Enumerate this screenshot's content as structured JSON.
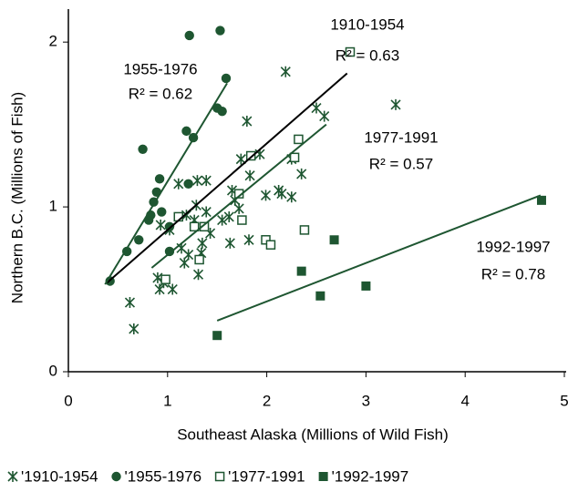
{
  "chart_data": {
    "type": "scatter",
    "x_label": "Southeast Alaska (Millions of Wild Fish)",
    "y_label": "Northern B.C. (Millions of Fish)",
    "xlim": [
      0,
      5
    ],
    "xticks": [
      0,
      1,
      2,
      3,
      4,
      5
    ],
    "ylim": [
      0,
      2.2
    ],
    "yticks": [
      0,
      1,
      2
    ],
    "grid": false,
    "legend": "bottom",
    "series": [
      {
        "name": "'1910-1954",
        "marker": "asterisk",
        "color": "#1e5631",
        "line_color": "#000000",
        "label": "1910-1954",
        "r2_label": "R² = 0.63",
        "x": [
          0.62,
          0.66,
          0.9,
          0.92,
          0.93,
          0.96,
          1.05,
          1.02,
          1.11,
          1.14,
          1.17,
          1.19,
          1.21,
          1.27,
          1.29,
          1.3,
          1.31,
          1.34,
          1.35,
          1.39,
          1.39,
          1.43,
          1.55,
          1.62,
          1.65,
          1.68,
          1.72,
          1.74,
          1.8,
          1.82,
          1.83,
          1.93,
          1.99,
          2.12,
          2.15,
          2.19,
          2.25,
          2.35,
          2.5,
          2.58,
          3.3,
          1.63,
          2.25
        ],
        "values": [
          0.42,
          0.26,
          0.57,
          0.5,
          0.89,
          0.54,
          0.5,
          0.86,
          1.14,
          0.75,
          0.66,
          0.95,
          0.71,
          0.92,
          1.01,
          1.16,
          0.59,
          0.72,
          0.78,
          1.16,
          0.97,
          0.84,
          0.92,
          0.94,
          1.1,
          1.04,
          0.99,
          1.29,
          1.52,
          0.8,
          1.19,
          1.32,
          1.07,
          1.1,
          1.08,
          1.82,
          1.06,
          1.2,
          1.6,
          1.55,
          1.62,
          0.78,
          1.29
        ],
        "trend": {
          "x": [
            0.39,
            2.81
          ],
          "y": [
            0.54,
            1.81
          ]
        }
      },
      {
        "name": "'1955-1976",
        "marker": "circle",
        "color": "#1e5631",
        "line_color": "#1e5631",
        "label": "1955-1976",
        "r2_label": "R² = 0.62",
        "x": [
          0.42,
          0.59,
          0.71,
          0.75,
          0.81,
          0.83,
          0.86,
          0.89,
          0.92,
          0.94,
          1.02,
          1.19,
          1.22,
          1.26,
          1.21,
          1.5,
          1.53,
          1.55,
          1.59,
          1.02
        ],
        "values": [
          0.55,
          0.73,
          0.8,
          1.35,
          0.92,
          0.95,
          1.03,
          1.09,
          1.17,
          0.97,
          0.88,
          1.46,
          2.04,
          1.42,
          1.14,
          1.6,
          2.07,
          1.58,
          1.78,
          0.73
        ],
        "trend": {
          "x": [
            0.37,
            1.6
          ],
          "y": [
            0.53,
            1.75
          ]
        }
      },
      {
        "name": "'1977-1991",
        "marker": "open-square",
        "color": "#1e5631",
        "line_color": "#1e5631",
        "label": "1977-1991",
        "r2_label": "R² = 0.57",
        "x": [
          0.98,
          1.11,
          1.27,
          1.32,
          1.37,
          1.72,
          1.75,
          1.84,
          1.99,
          2.04,
          2.28,
          2.32,
          2.38,
          2.84
        ],
        "values": [
          0.56,
          0.94,
          0.88,
          0.68,
          0.88,
          1.08,
          0.92,
          1.31,
          0.8,
          0.77,
          1.3,
          1.41,
          0.86,
          1.94
        ],
        "trend": {
          "x": [
            0.84,
            2.6
          ],
          "y": [
            0.63,
            1.5
          ]
        }
      },
      {
        "name": "'1992-1997",
        "marker": "square",
        "color": "#1e5631",
        "line_color": "#1e5631",
        "label": "1992-1997",
        "r2_label": "R² = 0.78",
        "x": [
          1.5,
          2.35,
          2.68,
          2.54,
          3.0,
          4.77
        ],
        "values": [
          0.22,
          0.61,
          0.8,
          0.46,
          0.52,
          1.04
        ],
        "trend": {
          "x": [
            1.5,
            4.76
          ],
          "y": [
            0.31,
            1.07
          ]
        }
      }
    ]
  }
}
